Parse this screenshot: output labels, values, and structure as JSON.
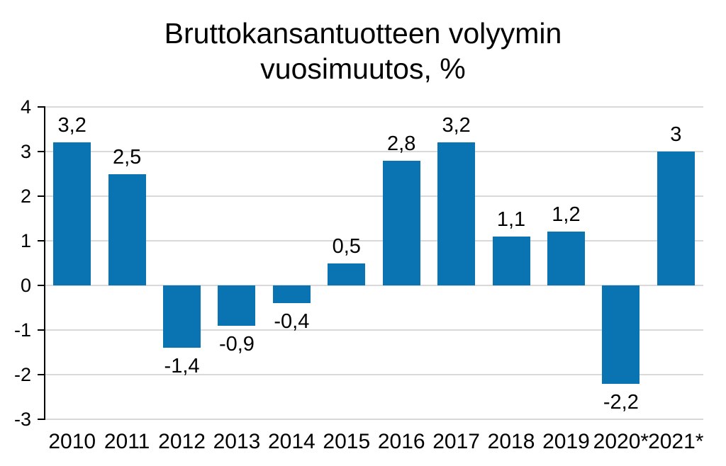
{
  "chart_data": {
    "type": "bar",
    "title": "Bruttokansantuotteen volyymin vuosimuutos, %",
    "title_lines": [
      "Bruttokansantuotteen volyymin",
      "vuosimuutos, %"
    ],
    "categories": [
      "2010",
      "2011",
      "2012",
      "2013",
      "2014",
      "2015",
      "2016",
      "2017",
      "2018",
      "2019",
      "2020*",
      "2021*"
    ],
    "values": [
      3.2,
      2.5,
      -1.4,
      -0.9,
      -0.4,
      0.5,
      2.8,
      3.2,
      1.1,
      1.2,
      -2.2,
      3
    ],
    "value_labels": [
      "3,2",
      "2,5",
      "-1,4",
      "-0,9",
      "-0,4",
      "0,5",
      "2,8",
      "3,2",
      "1,1",
      "1,2",
      "-2,2",
      "3"
    ],
    "xlabel": "",
    "ylabel": "",
    "ylim": [
      -3,
      4
    ],
    "yticks": [
      4,
      3,
      2,
      1,
      0,
      -1,
      -2,
      -3
    ],
    "ytick_labels": [
      "4",
      "3",
      "2",
      "1",
      "0",
      "-1",
      "-2",
      "-3"
    ],
    "grid": "horizontal",
    "legend": "none",
    "decimal_separator": ",",
    "colors": {
      "bar": "#0a73b2",
      "gridline": "#d9d9d9",
      "axis": "#000000",
      "text": "#000000",
      "background": "#ffffff"
    }
  }
}
